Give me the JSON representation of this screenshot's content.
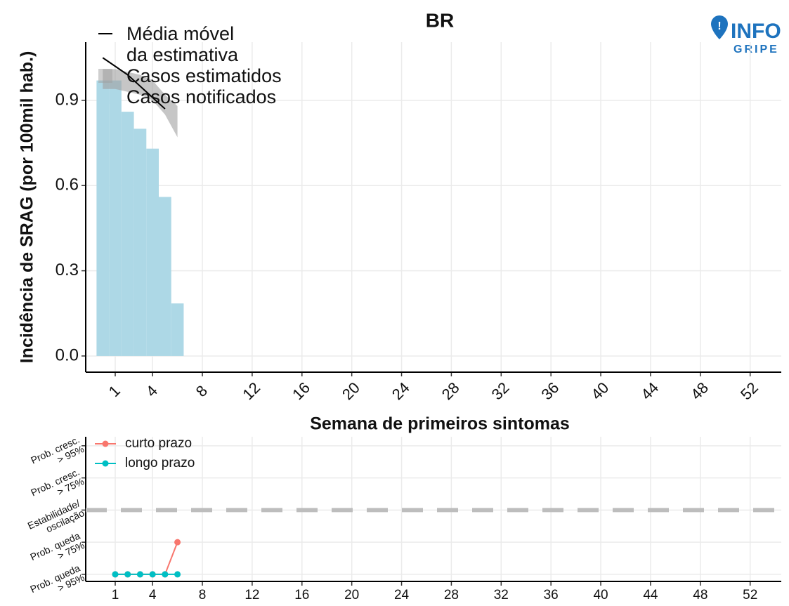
{
  "chart_data": [
    {
      "type": "bar",
      "title": "BR",
      "y_label": "Incidência de SRAG (por 100mil hab.)",
      "x_label": "Semana de primeiros sintomas",
      "xlim": [
        -1.37,
        54.5
      ],
      "ylim": [
        -0.057,
        1.105
      ],
      "xticks": [
        1,
        4,
        8,
        12,
        16,
        20,
        24,
        28,
        32,
        36,
        40,
        44,
        48,
        52
      ],
      "yticks": [
        {
          "value": 0,
          "label": "0.0"
        },
        0.3,
        0.6,
        0.9
      ],
      "grid": true,
      "series": [
        {
          "name": "Média móvel\nda estimativa",
          "type": "line",
          "color": "#000000",
          "x": [
            0,
            1,
            2,
            3,
            4,
            5
          ],
          "values": [
            1.05,
            1.02,
            0.99,
            0.95,
            0.91,
            0.87
          ]
        },
        {
          "name": "Casos estimatidos",
          "type": "band",
          "color": "#a0a0a0",
          "x": [
            0,
            1,
            2,
            3,
            4,
            5,
            6
          ],
          "lower": [
            0.94,
            0.94,
            0.93,
            0.92,
            0.9,
            0.85,
            0.77
          ],
          "upper": [
            1.01,
            1.01,
            1.0,
            0.99,
            0.97,
            0.92,
            0.88
          ]
        },
        {
          "name": "Casos notificados",
          "type": "bar",
          "color": "#add8e6",
          "x": [
            0,
            1,
            2,
            3,
            4,
            5,
            6
          ],
          "values": [
            0.97,
            0.97,
            0.86,
            0.8,
            0.73,
            0.56,
            0.185
          ]
        }
      ]
    },
    {
      "type": "line",
      "xlim": [
        -1.37,
        54.5
      ],
      "ylim": [
        -2.22,
        2.28
      ],
      "xticks": [
        1,
        4,
        8,
        12,
        16,
        20,
        24,
        28,
        32,
        36,
        40,
        44,
        48,
        52
      ],
      "yticks": [
        {
          "value": 2,
          "label": "Prob. cresc.\n> 95%"
        },
        {
          "value": 1,
          "label": "Prob. cresc.\n> 75%"
        },
        {
          "value": 0,
          "label": "Estabilidade/\noscilação"
        },
        {
          "value": -1,
          "label": "Prob. queda\n> 75%"
        },
        {
          "value": -2,
          "label": "Prob. queda\n> 95%"
        }
      ],
      "reference_line": 0,
      "grid": true,
      "series": [
        {
          "name": "curto prazo",
          "color": "#f8766d",
          "x": [
            1,
            2,
            3,
            4,
            5,
            6
          ],
          "values": [
            -2,
            -2,
            -2,
            -2,
            -2,
            -1
          ]
        },
        {
          "name": "longo prazo",
          "color": "#00bfc4",
          "x": [
            1,
            2,
            3,
            4,
            5,
            6
          ],
          "values": [
            -2,
            -2,
            -2,
            -2,
            -2,
            -2
          ]
        }
      ]
    }
  ],
  "logo": {
    "title": "INFO",
    "subtitle": "GRIPE"
  }
}
